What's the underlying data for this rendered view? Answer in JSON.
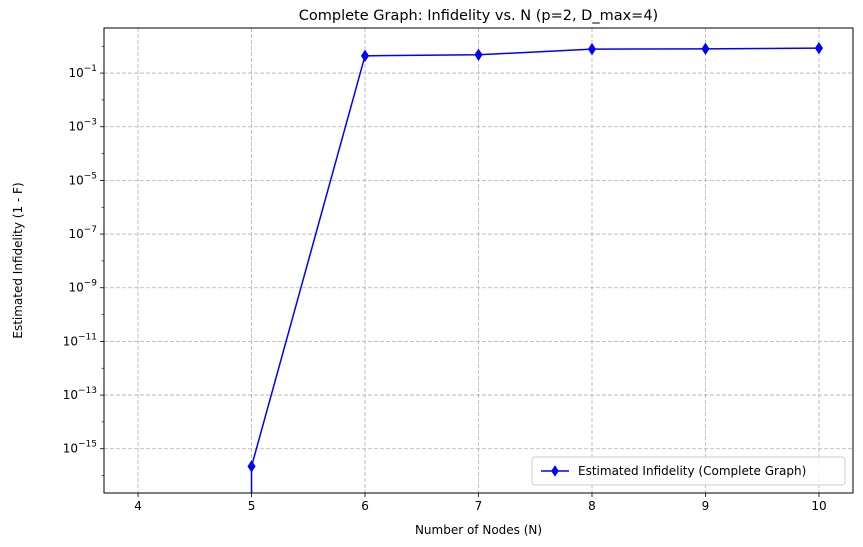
{
  "chart_data": {
    "type": "line",
    "title": "Complete Graph: Infidelity vs. N (p=2, D_max=4)",
    "xlabel": "Number of Nodes (N)",
    "ylabel": "Estimated Infidelity (1 - F)",
    "xscale": "linear",
    "yscale": "log",
    "xlim": [
      3.7,
      10.3
    ],
    "ylim_exponent": [
      -16.65,
      0.68
    ],
    "xticks": [
      4,
      5,
      6,
      7,
      8,
      9,
      10
    ],
    "yticks_exponent": [
      -15,
      -13,
      -11,
      -9,
      -7,
      -5,
      -3,
      -1
    ],
    "grid": true,
    "legend_position": "lower-right",
    "series": [
      {
        "name": "Estimated Infidelity (Complete Graph)",
        "color": "#0000ff",
        "marker": "thin-diamond",
        "x": [
          4,
          5,
          6,
          7,
          8,
          9,
          10
        ],
        "y": [
          null,
          2.2e-16,
          0.44,
          0.48,
          0.78,
          0.8,
          0.85
        ]
      }
    ]
  }
}
